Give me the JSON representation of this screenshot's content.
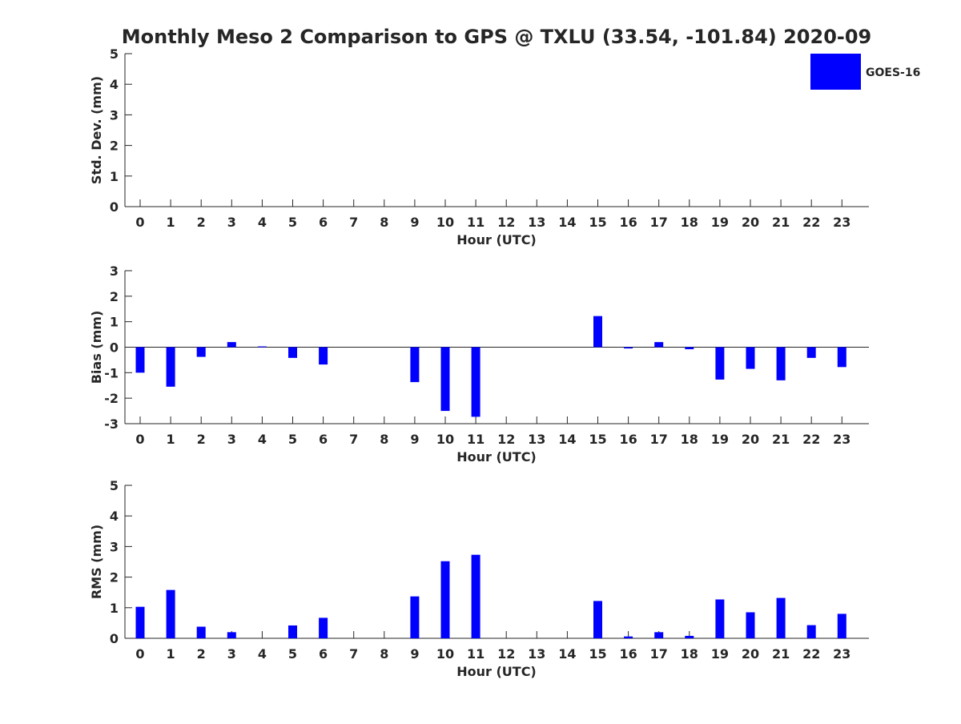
{
  "title": "Monthly Meso 2 Comparison to GPS @ TXLU (33.54, -101.84) 2020-09",
  "legend": {
    "label": "GOES-16",
    "color": "#0000ff"
  },
  "chart_data": [
    {
      "type": "bar",
      "name": "std-dev",
      "ylabel": "Std. Dev. (mm)",
      "xlabel": "Hour (UTC)",
      "ylim": [
        0,
        5
      ],
      "yticks": [
        0,
        1,
        2,
        3,
        4,
        5
      ],
      "categories": [
        "0",
        "1",
        "2",
        "3",
        "4",
        "5",
        "6",
        "7",
        "8",
        "9",
        "10",
        "11",
        "12",
        "13",
        "14",
        "15",
        "16",
        "17",
        "18",
        "19",
        "20",
        "21",
        "22",
        "23"
      ],
      "series": [
        {
          "name": "GOES-16",
          "values": [
            null,
            null,
            null,
            null,
            null,
            null,
            null,
            null,
            null,
            null,
            null,
            null,
            null,
            null,
            null,
            null,
            null,
            null,
            null,
            null,
            null,
            null,
            null,
            null
          ]
        }
      ]
    },
    {
      "type": "bar",
      "name": "bias",
      "ylabel": "Bias (mm)",
      "xlabel": "Hour (UTC)",
      "ylim": [
        -3,
        3
      ],
      "yticks": [
        -3,
        -2,
        -1,
        0,
        1,
        2,
        3
      ],
      "categories": [
        "0",
        "1",
        "2",
        "3",
        "4",
        "5",
        "6",
        "7",
        "8",
        "9",
        "10",
        "11",
        "12",
        "13",
        "14",
        "15",
        "16",
        "17",
        "18",
        "19",
        "20",
        "21",
        "22",
        "23"
      ],
      "series": [
        {
          "name": "GOES-16",
          "values": [
            -1.0,
            -1.55,
            -0.38,
            0.2,
            0.03,
            -0.42,
            -0.68,
            null,
            null,
            -1.37,
            -2.5,
            -2.73,
            null,
            null,
            null,
            1.22,
            -0.05,
            0.2,
            -0.08,
            -1.27,
            -0.85,
            -1.3,
            -0.42,
            -0.78
          ]
        }
      ]
    },
    {
      "type": "bar",
      "name": "rms",
      "ylabel": "RMS (mm)",
      "xlabel": "Hour (UTC)",
      "ylim": [
        0,
        5
      ],
      "yticks": [
        0,
        1,
        2,
        3,
        4,
        5
      ],
      "categories": [
        "0",
        "1",
        "2",
        "3",
        "4",
        "5",
        "6",
        "7",
        "8",
        "9",
        "10",
        "11",
        "12",
        "13",
        "14",
        "15",
        "16",
        "17",
        "18",
        "19",
        "20",
        "21",
        "22",
        "23"
      ],
      "series": [
        {
          "name": "GOES-16",
          "values": [
            1.03,
            1.58,
            0.38,
            0.2,
            null,
            0.42,
            0.67,
            null,
            null,
            1.37,
            2.52,
            2.73,
            null,
            null,
            null,
            1.22,
            0.06,
            0.2,
            0.08,
            1.27,
            0.85,
            1.32,
            0.43,
            0.8
          ]
        }
      ]
    }
  ]
}
